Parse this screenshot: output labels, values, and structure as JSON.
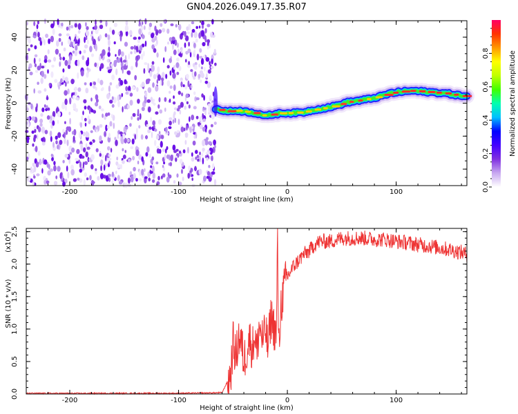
{
  "title": "GN04.2026.049.17.35.R07",
  "chart_data": [
    {
      "type": "heatmap",
      "name": "spectrogram",
      "xlabel": "Height of straight line (km)",
      "ylabel": "Frequency (Hz)",
      "xlim": [
        -240,
        165
      ],
      "ylim": [
        -50,
        50
      ],
      "xticks": [
        -200,
        -100,
        0,
        100
      ],
      "xtick_labels": [
        "-200",
        "-100",
        "0",
        "100"
      ],
      "yticks": [
        -40,
        -20,
        0,
        20,
        40
      ],
      "ytick_labels": [
        "-40",
        "-20",
        "0",
        "20",
        "40"
      ],
      "noise_region_x": [
        -240,
        -66
      ],
      "signal_track": {
        "x": [
          -66,
          -55,
          -45,
          -35,
          -25,
          -20,
          -15,
          -5,
          5,
          15,
          25,
          35,
          45,
          55,
          65,
          75,
          85,
          95,
          105,
          115,
          125,
          135,
          145,
          155,
          165
        ],
        "frequency": [
          -3.5,
          -5,
          -4.5,
          -5.5,
          -6.5,
          -8,
          -7,
          -6,
          -6,
          -5.5,
          -4,
          -3,
          -1.5,
          0.5,
          1.5,
          2.5,
          4,
          6,
          7,
          7.5,
          7,
          6.5,
          6,
          5,
          4
        ]
      }
    },
    {
      "type": "line",
      "name": "snr",
      "xlabel": "Height of straight line (km)",
      "ylabel": "SNR (10 * v/v)",
      "multiplier_label": "(x10",
      "multiplier_exp": "4",
      "multiplier_close": ")",
      "xlim": [
        -240,
        165
      ],
      "ylim": [
        0,
        2.55
      ],
      "xticks": [
        -200,
        -100,
        0,
        100
      ],
      "xtick_labels": [
        "-200",
        "-100",
        "0",
        "100"
      ],
      "yticks": [
        0,
        0.5,
        1,
        1.5,
        2,
        2.5
      ],
      "ytick_labels": [
        "0.0",
        "0.5",
        "1.0",
        "1.5",
        "2.0",
        "2.5"
      ],
      "series": [
        {
          "name": "SNR",
          "color": "#ee3333",
          "x": [
            -240,
            -100,
            -60,
            -52,
            -50,
            -47,
            -45,
            -42,
            -40,
            -35,
            -32,
            -30,
            -28,
            -26,
            -22,
            -20,
            -18,
            -15,
            -12,
            -10,
            -9,
            -8,
            -6,
            -4,
            -2,
            0,
            5,
            10,
            15,
            20,
            25,
            30,
            40,
            50,
            60,
            70,
            80,
            90,
            100,
            110,
            120,
            130,
            140,
            150,
            160,
            165
          ],
          "y": [
            0.01,
            0.01,
            0.02,
            0.3,
            0.8,
            0.55,
            0.9,
            0.75,
            0.5,
            0.85,
            0.7,
            0.95,
            0.6,
            1.05,
            0.8,
            1.0,
            0.7,
            1.2,
            1.0,
            0.9,
            2.5,
            0.6,
            1.35,
            1.55,
            1.7,
            1.8,
            1.95,
            2.05,
            2.15,
            2.2,
            2.3,
            2.35,
            2.35,
            2.4,
            2.4,
            2.4,
            2.38,
            2.38,
            2.35,
            2.33,
            2.3,
            2.28,
            2.25,
            2.22,
            2.18,
            2.15
          ],
          "noise_amplitude": 0.12
        }
      ]
    },
    {
      "type": "colorbar",
      "name": "amplitude-colorbar",
      "label": "Normalized spectral amplitude",
      "ylim": [
        0,
        1
      ],
      "ticks": [
        0,
        0.2,
        0.4,
        0.6,
        0.8
      ],
      "tick_labels": [
        "0.0",
        "0.2",
        "0.4",
        "0.6",
        "0.8"
      ],
      "colors": [
        "#ffffff",
        "#c8a8f0",
        "#8030e0",
        "#4400ff",
        "#0000ff",
        "#00c0ff",
        "#00ffb0",
        "#40ff00",
        "#c0ff00",
        "#ffff00",
        "#ff9900",
        "#ff3300",
        "#ff0066"
      ]
    }
  ]
}
